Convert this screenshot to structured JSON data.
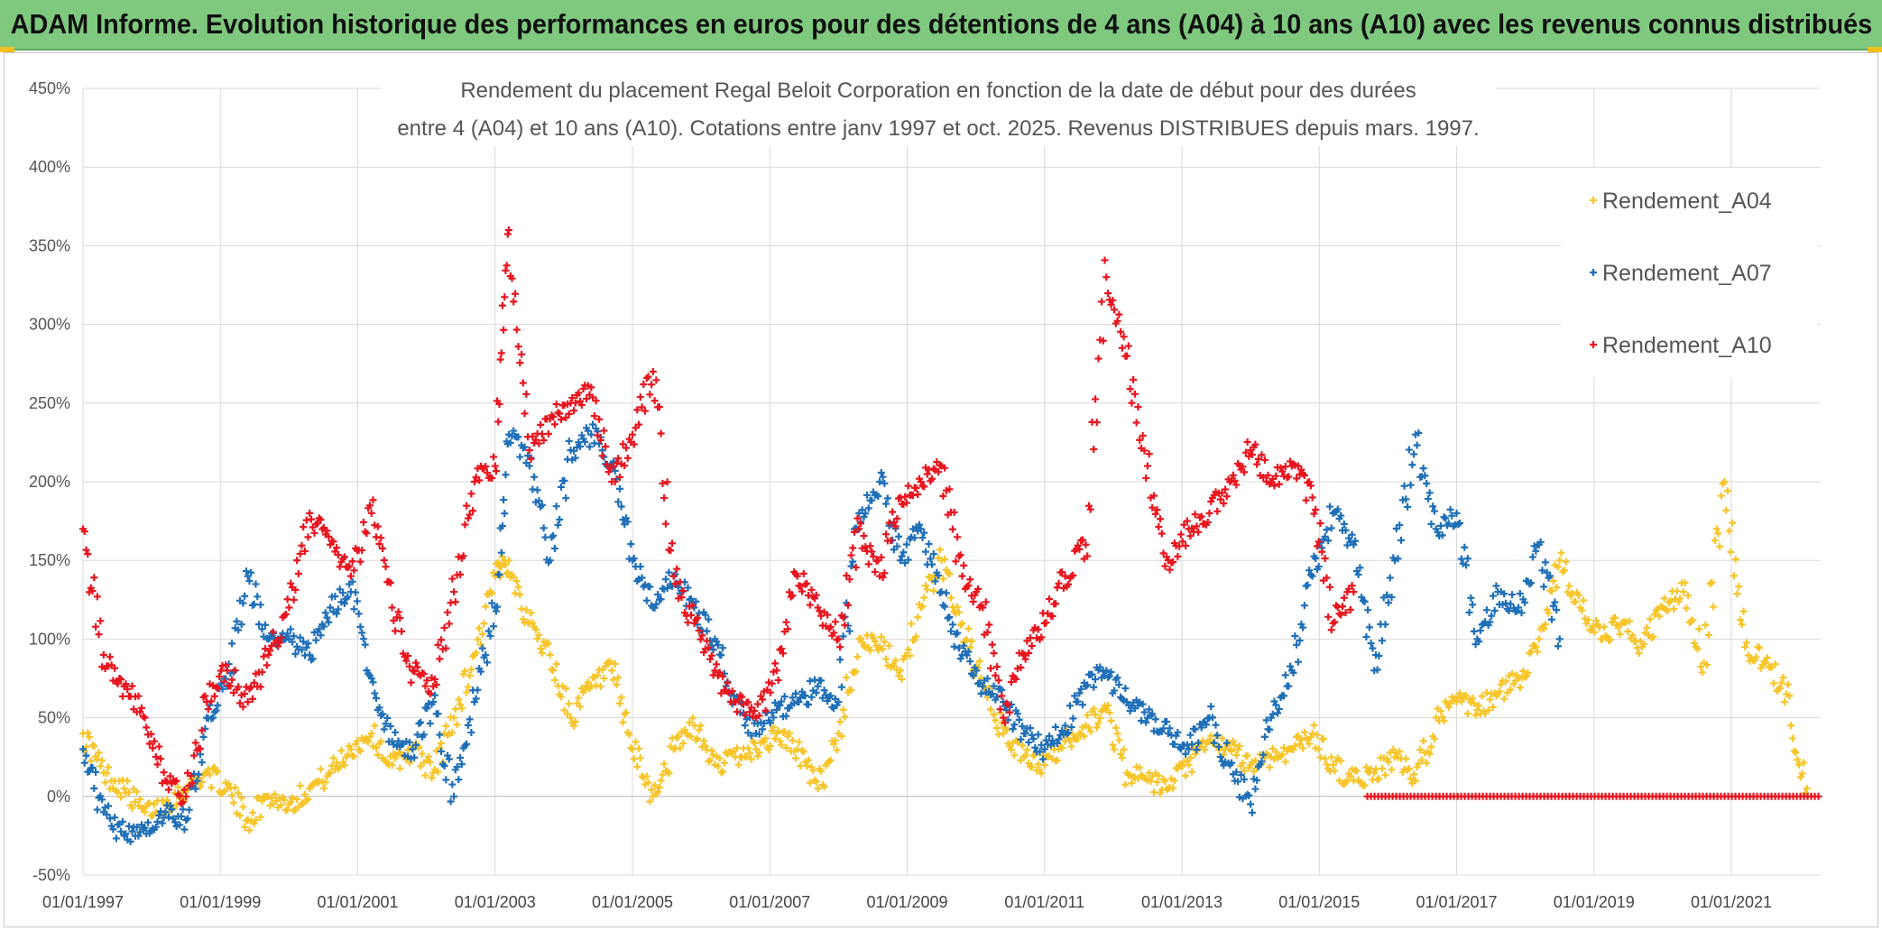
{
  "header": {
    "title": "ADAM Informe. Evolution historique des performances en euros pour des détentions de 4 ans (A04) à 10 ans (A10) avec les revenus connus distribués"
  },
  "colors": {
    "header_bg": "#7fc97f",
    "grid": "#d9d9d9",
    "series_A04": "#f7c52a",
    "series_A07": "#1f6fb8",
    "series_A10": "#e8141e"
  },
  "chart_data": {
    "type": "scatter",
    "title_line1": "Rendement du placement Regal Beloit Corporation en fonction de la date de début pour des durées",
    "title_line2": "entre 4 (A04) et 10 ans (A10). Cotations entre janv 1997 et oct. 2025. Revenus DISTRIBUES depuis mars. 1997.",
    "xlabel": "",
    "ylabel": "",
    "x_range": [
      1997.0,
      2022.3
    ],
    "ylim": [
      -50,
      450
    ],
    "y_ticks": [
      -50,
      0,
      50,
      100,
      150,
      200,
      250,
      300,
      350,
      400,
      450
    ],
    "y_tick_labels": [
      "-50%",
      "0%",
      "50%",
      "100%",
      "150%",
      "200%",
      "250%",
      "300%",
      "350%",
      "400%",
      "450%"
    ],
    "x_ticks": [
      1997,
      1999,
      2001,
      2003,
      2005,
      2007,
      2009,
      2011,
      2013,
      2015,
      2017,
      2019,
      2021
    ],
    "x_tick_labels": [
      "01/01/1997",
      "01/01/1999",
      "01/01/2001",
      "01/01/2003",
      "01/01/2005",
      "01/01/2007",
      "01/01/2009",
      "01/01/2011",
      "01/01/2013",
      "01/01/2015",
      "01/01/2017",
      "01/01/2019",
      "01/01/2021"
    ],
    "grid": true,
    "legend_position": "top-right",
    "marker": "+",
    "series": [
      {
        "name": "Rendement_A04",
        "color": "#f7c52a",
        "x": [
          1997.0,
          1997.3,
          1997.6,
          1997.9,
          1998.2,
          1998.5,
          1998.8,
          1999.1,
          1999.4,
          1999.7,
          2000.0,
          2000.3,
          2000.6,
          2000.9,
          2001.2,
          2001.5,
          2001.8,
          2002.1,
          2002.4,
          2002.7,
          2003.0,
          2003.2,
          2003.5,
          2003.8,
          2004.1,
          2004.4,
          2004.7,
          2005.0,
          2005.3,
          2005.6,
          2005.9,
          2006.2,
          2006.5,
          2006.8,
          2007.1,
          2007.4,
          2007.7,
          2008.0,
          2008.3,
          2008.6,
          2008.9,
          2009.2,
          2009.5,
          2009.8,
          2010.1,
          2010.4,
          2010.7,
          2011.0,
          2011.3,
          2011.6,
          2011.9,
          2012.2,
          2012.5,
          2012.8,
          2013.1,
          2013.4,
          2013.7,
          2014.0,
          2014.3,
          2014.6,
          2014.9,
          2015.2,
          2015.5,
          2015.8,
          2016.1,
          2016.4,
          2016.7,
          2017.0,
          2017.3,
          2017.6,
          2017.9,
          2018.2,
          2018.5,
          2018.8,
          2019.1,
          2019.4,
          2019.7,
          2020.0,
          2020.3,
          2020.6,
          2020.9,
          2021.2,
          2021.5,
          2021.8,
          2022.1
        ],
        "values": [
          40,
          15,
          5,
          -10,
          -5,
          5,
          15,
          5,
          -15,
          0,
          -5,
          5,
          15,
          30,
          40,
          20,
          30,
          15,
          50,
          90,
          140,
          150,
          110,
          90,
          50,
          70,
          80,
          30,
          0,
          30,
          45,
          20,
          25,
          30,
          40,
          30,
          5,
          40,
          100,
          95,
          80,
          120,
          150,
          110,
          70,
          40,
          25,
          20,
          35,
          45,
          55,
          15,
          10,
          5,
          20,
          35,
          30,
          20,
          25,
          30,
          40,
          20,
          10,
          15,
          25,
          10,
          50,
          60,
          55,
          65,
          75,
          100,
          150,
          120,
          100,
          110,
          95,
          120,
          130,
          85,
          200,
          95,
          85,
          65,
          5
        ]
      },
      {
        "name": "Rendement_A07",
        "color": "#1f6fb8",
        "x": [
          1997.0,
          1997.3,
          1997.6,
          1997.9,
          1998.2,
          1998.5,
          1998.8,
          1999.1,
          1999.4,
          1999.7,
          2000.0,
          2000.3,
          2000.6,
          2000.9,
          2001.2,
          2001.5,
          2001.8,
          2002.1,
          2002.4,
          2002.7,
          2003.0,
          2003.2,
          2003.5,
          2003.8,
          2004.1,
          2004.4,
          2004.7,
          2005.0,
          2005.3,
          2005.6,
          2005.9,
          2006.2,
          2006.5,
          2006.8,
          2007.1,
          2007.4,
          2007.7,
          2008.0,
          2008.3,
          2008.6,
          2008.9,
          2009.2,
          2009.5,
          2009.8,
          2010.1,
          2010.4,
          2010.7,
          2011.0,
          2011.3,
          2011.6,
          2011.9,
          2012.2,
          2012.5,
          2012.8,
          2013.1,
          2013.4,
          2013.7,
          2014.0,
          2014.3,
          2014.6,
          2014.9,
          2015.2,
          2015.5,
          2015.8,
          2016.1,
          2016.4,
          2016.7,
          2017.0,
          2017.3,
          2017.6,
          2017.9,
          2018.2,
          2018.5
        ],
        "values": [
          30,
          -10,
          -25,
          -20,
          -10,
          -15,
          50,
          70,
          140,
          100,
          100,
          90,
          120,
          130,
          75,
          35,
          30,
          60,
          0,
          60,
          120,
          230,
          210,
          150,
          220,
          230,
          210,
          150,
          120,
          140,
          120,
          100,
          60,
          40,
          55,
          60,
          70,
          60,
          180,
          200,
          150,
          170,
          130,
          90,
          70,
          60,
          40,
          30,
          45,
          70,
          80,
          60,
          50,
          40,
          30,
          50,
          20,
          -5,
          50,
          80,
          140,
          180,
          160,
          80,
          150,
          230,
          170,
          180,
          100,
          130,
          120,
          160,
          100
        ]
      },
      {
        "name": "Rendement_A10",
        "color": "#e8141e",
        "x": [
          1997.0,
          1997.3,
          1997.6,
          1997.9,
          1998.2,
          1998.5,
          1998.8,
          1999.1,
          1999.4,
          1999.7,
          2000.0,
          2000.3,
          2000.6,
          2000.9,
          2001.2,
          2001.5,
          2001.8,
          2002.1,
          2002.4,
          2002.7,
          2003.0,
          2003.2,
          2003.5,
          2003.8,
          2004.1,
          2004.4,
          2004.7,
          2005.0,
          2005.3,
          2005.6,
          2005.9,
          2006.2,
          2006.5,
          2006.8,
          2007.1,
          2007.4,
          2007.7,
          2008.0,
          2008.3,
          2008.6,
          2008.9,
          2009.2,
          2009.5,
          2009.8,
          2010.1,
          2010.4,
          2010.7,
          2011.0,
          2011.3,
          2011.6,
          2011.9,
          2012.2,
          2012.5,
          2012.8,
          2013.1,
          2013.4,
          2013.7,
          2014.0,
          2014.3,
          2014.6,
          2014.9,
          2015.2,
          2015.5
        ],
        "values": [
          170,
          90,
          70,
          50,
          10,
          0,
          60,
          80,
          60,
          90,
          120,
          180,
          160,
          140,
          180,
          120,
          80,
          70,
          130,
          200,
          210,
          360,
          220,
          240,
          250,
          260,
          200,
          230,
          270,
          140,
          110,
          80,
          60,
          50,
          80,
          140,
          120,
          100,
          170,
          140,
          190,
          200,
          210,
          140,
          120,
          50,
          90,
          110,
          140,
          160,
          330,
          280,
          210,
          150,
          170,
          180,
          200,
          220,
          200,
          210,
          190,
          110,
          130
        ]
      }
    ],
    "flat_line": {
      "series": "Rendement_A10",
      "value": 0,
      "x_from": 2015.7,
      "x_to": 2022.3
    }
  }
}
